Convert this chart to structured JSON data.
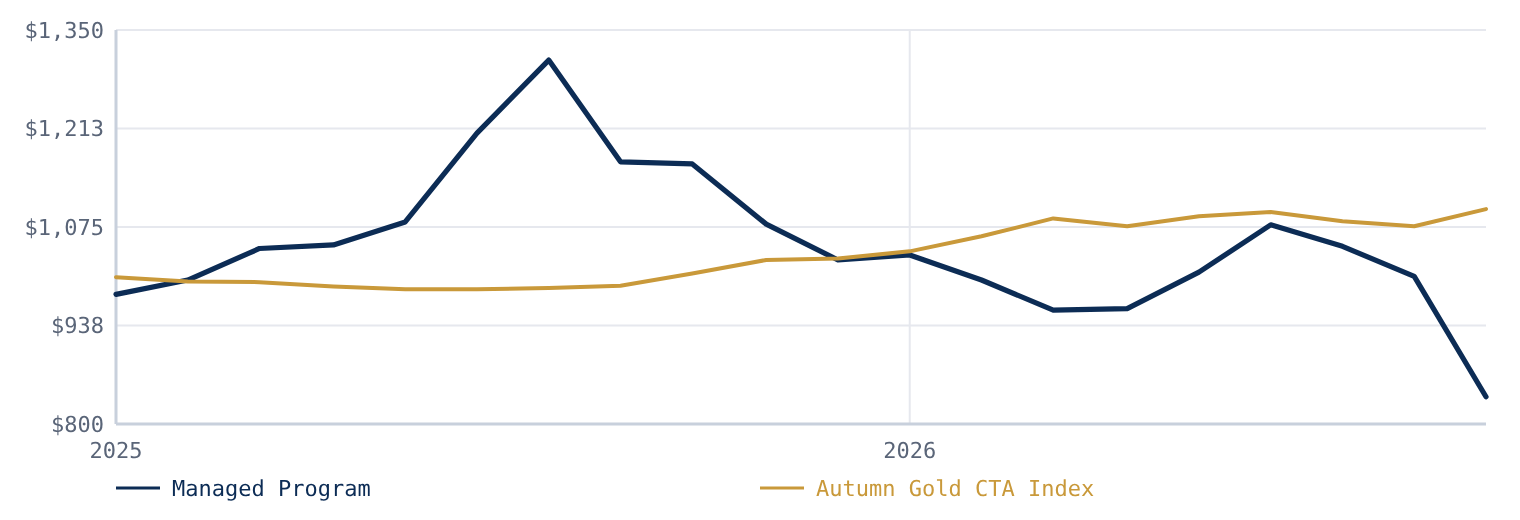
{
  "chart_data": {
    "type": "line",
    "x": [
      "2025-01-01",
      "2025-02-03",
      "2025-03-08",
      "2025-04-11",
      "2025-05-14",
      "2025-06-16",
      "2025-07-19",
      "2025-08-21",
      "2025-09-23",
      "2025-10-27",
      "2025-11-29",
      "2026-01-01",
      "2026-02-03",
      "2026-03-08",
      "2026-04-11",
      "2026-05-14",
      "2026-06-16",
      "2026-07-19",
      "2026-08-21",
      "2026-09-23"
    ],
    "series": [
      {
        "name": "Managed Program",
        "color": "#0c2c55",
        "values": [
          981,
          1001,
          1045,
          1050,
          1082,
          1206,
          1308,
          1166,
          1163,
          1079,
          1029,
          1036,
          1001,
          959,
          961,
          1012,
          1078,
          1048,
          1006,
          838
        ]
      },
      {
        "name": "Autumn Gold CTA Index",
        "color": "#c9993a",
        "values": [
          1005,
          999,
          998,
          992,
          988,
          988,
          990,
          993,
          1010,
          1029,
          1031,
          1041,
          1062,
          1087,
          1076,
          1090,
          1096,
          1083,
          1076,
          1100
        ]
      }
    ],
    "xlim": [
      "2025-01-01",
      "2026-09-23"
    ],
    "xticks": [
      "2025",
      "2026"
    ],
    "ylim": [
      800,
      1350
    ],
    "yticks": [
      {
        "value": 800,
        "label": "$800"
      },
      {
        "value": 937.5,
        "label": "$938"
      },
      {
        "value": 1075,
        "label": "$1,075"
      },
      {
        "value": 1212.5,
        "label": "$1,213"
      },
      {
        "value": 1350,
        "label": "$1,350"
      }
    ],
    "grid": true,
    "legend": "bottom",
    "marker": "none",
    "line_style": "solid"
  }
}
